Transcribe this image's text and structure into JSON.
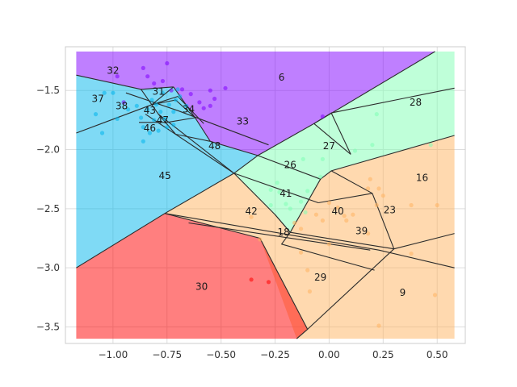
{
  "chart_data": {
    "type": "scatter",
    "title": "",
    "xlabel": "",
    "ylabel": "",
    "xlim": [
      -1.22,
      0.63
    ],
    "ylim": [
      -3.64,
      -1.13
    ],
    "grid": true,
    "x_ticks": [
      -1.0,
      -0.75,
      -0.5,
      -0.25,
      0.0,
      0.25,
      0.5
    ],
    "y_ticks": [
      -1.5,
      -2.0,
      -2.5,
      -3.0,
      -3.5
    ],
    "x_tick_labels": [
      "−1.00",
      "−0.75",
      "−0.50",
      "−0.25",
      "0.00",
      "0.25",
      "0.50"
    ],
    "y_tick_labels": [
      "−1.5",
      "−2.0",
      "−2.5",
      "−3.0",
      "−3.5"
    ],
    "region_colors": {
      "purple": "#8000ff",
      "cyan": "#00b5eb",
      "mint": "#80ffb4",
      "orange": "#ffb360",
      "red": "#ff0000"
    },
    "regions": [
      {
        "color": "purple",
        "polygon": [
          [
            -1.17,
            -1.17
          ],
          [
            0.49,
            -1.17
          ],
          [
            -0.07,
            -1.78
          ],
          [
            -0.33,
            -2.05
          ],
          [
            -0.55,
            -1.93
          ],
          [
            -0.62,
            -1.73
          ],
          [
            -0.72,
            -1.47
          ],
          [
            -0.87,
            -1.49
          ],
          [
            -1.17,
            -1.37
          ]
        ]
      },
      {
        "color": "cyan",
        "polygon": [
          [
            -1.17,
            -1.37
          ],
          [
            -0.87,
            -1.49
          ],
          [
            -0.72,
            -1.47
          ],
          [
            -0.62,
            -1.73
          ],
          [
            -0.55,
            -1.93
          ],
          [
            -0.33,
            -2.05
          ],
          [
            -0.44,
            -2.2
          ],
          [
            -0.76,
            -2.54
          ],
          [
            -1.17,
            -3.0
          ]
        ]
      },
      {
        "color": "mint",
        "polygon": [
          [
            0.49,
            -1.17
          ],
          [
            0.58,
            -1.17
          ],
          [
            0.58,
            -1.88
          ],
          [
            0.01,
            -2.18
          ],
          [
            -0.04,
            -2.25
          ],
          [
            -0.18,
            -2.7
          ],
          [
            -0.25,
            -2.55
          ],
          [
            -0.44,
            -2.2
          ],
          [
            -0.33,
            -2.05
          ],
          [
            -0.07,
            -1.78
          ]
        ]
      },
      {
        "color": "orange",
        "polygon": [
          [
            0.58,
            -1.88
          ],
          [
            0.58,
            -3.6
          ],
          [
            -0.15,
            -3.6
          ],
          [
            -0.32,
            -2.75
          ],
          [
            -0.76,
            -2.54
          ],
          [
            -0.44,
            -2.2
          ],
          [
            -0.25,
            -2.55
          ],
          [
            -0.18,
            -2.7
          ],
          [
            -0.04,
            -2.25
          ],
          [
            0.01,
            -2.18
          ]
        ]
      },
      {
        "color": "red",
        "polygon": [
          [
            -1.17,
            -3.0
          ],
          [
            -0.76,
            -2.54
          ],
          [
            -0.32,
            -2.75
          ],
          [
            -0.1,
            -3.52
          ],
          [
            -0.15,
            -3.6
          ],
          [
            -1.17,
            -3.6
          ]
        ]
      }
    ],
    "boundaries": [
      [
        [
          -1.17,
          -1.37
        ],
        [
          -0.87,
          -1.49
        ],
        [
          -0.72,
          -1.47
        ]
      ],
      [
        [
          -0.72,
          -1.47
        ],
        [
          -0.62,
          -1.73
        ],
        [
          -0.55,
          -1.93
        ],
        [
          -0.33,
          -2.05
        ],
        [
          -0.07,
          -1.78
        ],
        [
          0.49,
          -1.17
        ]
      ],
      [
        [
          -1.17,
          -3.0
        ],
        [
          -0.76,
          -2.54
        ],
        [
          -0.44,
          -2.2
        ],
        [
          -0.33,
          -2.05
        ]
      ],
      [
        [
          -1.17,
          -1.86
        ],
        [
          -0.82,
          -1.62
        ],
        [
          -0.72,
          -1.47
        ]
      ],
      [
        [
          -0.87,
          -1.49
        ],
        [
          -0.79,
          -1.7
        ],
        [
          -0.44,
          -2.2
        ]
      ],
      [
        [
          -0.94,
          -1.52
        ],
        [
          -0.7,
          -1.67
        ],
        [
          -0.28,
          -1.96
        ]
      ],
      [
        [
          -0.85,
          -1.7
        ],
        [
          -0.44,
          -2.2
        ]
      ],
      [
        [
          -0.82,
          -1.62
        ],
        [
          -0.7,
          -1.55
        ],
        [
          -0.58,
          -1.78
        ]
      ],
      [
        [
          -0.88,
          -1.77
        ],
        [
          -0.75,
          -1.77
        ],
        [
          -0.62,
          -1.73
        ]
      ],
      [
        [
          -0.82,
          -1.62
        ],
        [
          -0.71,
          -1.58
        ],
        [
          -0.62,
          -1.73
        ]
      ],
      [
        [
          -0.55,
          -1.93
        ],
        [
          -0.71,
          -1.87
        ],
        [
          -0.79,
          -1.7
        ]
      ],
      [
        [
          -0.44,
          -2.2
        ],
        [
          -0.25,
          -2.55
        ],
        [
          -0.18,
          -2.7
        ],
        [
          -0.04,
          -2.25
        ],
        [
          0.01,
          -2.18
        ],
        [
          0.58,
          -1.88
        ]
      ],
      [
        [
          -0.33,
          -2.05
        ],
        [
          -0.04,
          -2.25
        ]
      ],
      [
        [
          -0.44,
          -2.2
        ],
        [
          -0.05,
          -2.45
        ]
      ],
      [
        [
          -0.76,
          -2.54
        ],
        [
          -0.32,
          -2.75
        ],
        [
          -0.1,
          -3.52
        ],
        [
          -0.15,
          -3.6
        ]
      ],
      [
        [
          -0.76,
          -2.54
        ],
        [
          0.23,
          -2.85
        ],
        [
          0.58,
          -3.0
        ]
      ],
      [
        [
          -0.65,
          -2.62
        ],
        [
          0.19,
          -2.85
        ]
      ],
      [
        [
          -0.25,
          -2.55
        ],
        [
          -0.18,
          -2.7
        ],
        [
          -0.22,
          -2.8
        ],
        [
          0.21,
          -3.02
        ]
      ],
      [
        [
          -0.18,
          -2.7
        ],
        [
          0.3,
          -2.84
        ],
        [
          0.58,
          -2.71
        ]
      ],
      [
        [
          -0.1,
          -3.52
        ],
        [
          0.3,
          -2.84
        ]
      ],
      [
        [
          0.01,
          -2.18
        ],
        [
          0.2,
          -2.37
        ],
        [
          0.3,
          -2.84
        ]
      ],
      [
        [
          -0.05,
          -2.45
        ],
        [
          0.2,
          -2.37
        ]
      ],
      [
        [
          -0.07,
          -1.78
        ],
        [
          0.01,
          -1.69
        ],
        [
          0.1,
          -2.04
        ]
      ],
      [
        [
          0.01,
          -1.69
        ],
        [
          0.58,
          -1.48
        ]
      ],
      [
        [
          -0.07,
          -1.78
        ],
        [
          0.1,
          -2.04
        ]
      ]
    ],
    "region_labels": [
      {
        "text": "32",
        "x": -1.0,
        "y": -1.33
      },
      {
        "text": "6",
        "x": -0.22,
        "y": -1.39
      },
      {
        "text": "37",
        "x": -1.07,
        "y": -1.57
      },
      {
        "text": "31",
        "x": -0.79,
        "y": -1.51
      },
      {
        "text": "38",
        "x": -0.96,
        "y": -1.63
      },
      {
        "text": "43",
        "x": -0.83,
        "y": -1.67
      },
      {
        "text": "34",
        "x": -0.65,
        "y": -1.66
      },
      {
        "text": "28",
        "x": 0.4,
        "y": -1.6
      },
      {
        "text": "47",
        "x": -0.77,
        "y": -1.75
      },
      {
        "text": "33",
        "x": -0.4,
        "y": -1.76
      },
      {
        "text": "46",
        "x": -0.83,
        "y": -1.82
      },
      {
        "text": "48",
        "x": -0.53,
        "y": -1.97
      },
      {
        "text": "27",
        "x": 0.0,
        "y": -1.97
      },
      {
        "text": "26",
        "x": -0.18,
        "y": -2.13
      },
      {
        "text": "45",
        "x": -0.76,
        "y": -2.22
      },
      {
        "text": "16",
        "x": 0.43,
        "y": -2.24
      },
      {
        "text": "41",
        "x": -0.2,
        "y": -2.37
      },
      {
        "text": "42",
        "x": -0.36,
        "y": -2.52
      },
      {
        "text": "40",
        "x": 0.04,
        "y": -2.52
      },
      {
        "text": "23",
        "x": 0.28,
        "y": -2.51
      },
      {
        "text": "18",
        "x": -0.21,
        "y": -2.7
      },
      {
        "text": "39",
        "x": 0.15,
        "y": -2.69
      },
      {
        "text": "29",
        "x": -0.04,
        "y": -3.08
      },
      {
        "text": "30",
        "x": -0.59,
        "y": -3.16
      },
      {
        "text": "9",
        "x": 0.34,
        "y": -3.21
      }
    ],
    "points": [
      {
        "x": -0.98,
        "y": -1.38,
        "color": "purple"
      },
      {
        "x": -0.86,
        "y": -1.31,
        "color": "purple"
      },
      {
        "x": -0.81,
        "y": -1.44,
        "color": "purple"
      },
      {
        "x": -0.77,
        "y": -1.42,
        "color": "purple"
      },
      {
        "x": -0.75,
        "y": -1.27,
        "color": "purple"
      },
      {
        "x": -0.73,
        "y": -1.5,
        "color": "purple"
      },
      {
        "x": -0.68,
        "y": -1.49,
        "color": "purple"
      },
      {
        "x": -0.64,
        "y": -1.53,
        "color": "purple"
      },
      {
        "x": -0.6,
        "y": -1.6,
        "color": "purple"
      },
      {
        "x": -0.58,
        "y": -1.65,
        "color": "purple"
      },
      {
        "x": -0.55,
        "y": -1.5,
        "color": "purple"
      },
      {
        "x": -0.55,
        "y": -1.63,
        "color": "purple"
      },
      {
        "x": -0.53,
        "y": -1.57,
        "color": "purple"
      },
      {
        "x": -0.48,
        "y": -1.48,
        "color": "purple"
      },
      {
        "x": -0.95,
        "y": -1.6,
        "color": "purple"
      },
      {
        "x": -0.84,
        "y": -1.38,
        "color": "purple"
      },
      {
        "x": -0.03,
        "y": -1.72,
        "color": "purple"
      },
      {
        "x": -1.08,
        "y": -1.7,
        "color": "cyan"
      },
      {
        "x": -1.04,
        "y": -1.52,
        "color": "cyan"
      },
      {
        "x": -1.05,
        "y": -1.86,
        "color": "cyan"
      },
      {
        "x": -1.0,
        "y": -1.52,
        "color": "cyan"
      },
      {
        "x": -0.98,
        "y": -1.74,
        "color": "cyan"
      },
      {
        "x": -0.93,
        "y": -1.66,
        "color": "cyan"
      },
      {
        "x": -0.89,
        "y": -1.63,
        "color": "cyan"
      },
      {
        "x": -0.87,
        "y": -1.73,
        "color": "cyan"
      },
      {
        "x": -0.86,
        "y": -1.81,
        "color": "cyan"
      },
      {
        "x": -0.86,
        "y": -1.93,
        "color": "cyan"
      },
      {
        "x": -0.84,
        "y": -1.66,
        "color": "cyan"
      },
      {
        "x": -0.83,
        "y": -1.86,
        "color": "cyan"
      },
      {
        "x": -0.82,
        "y": -1.58,
        "color": "cyan"
      },
      {
        "x": -0.81,
        "y": -1.75,
        "color": "cyan"
      },
      {
        "x": -0.8,
        "y": -1.62,
        "color": "cyan"
      },
      {
        "x": -0.79,
        "y": -1.84,
        "color": "cyan"
      },
      {
        "x": -0.78,
        "y": -1.68,
        "color": "cyan"
      },
      {
        "x": -0.77,
        "y": -1.52,
        "color": "cyan"
      },
      {
        "x": -0.76,
        "y": -1.74,
        "color": "cyan"
      },
      {
        "x": -0.75,
        "y": -1.81,
        "color": "cyan"
      },
      {
        "x": -0.74,
        "y": -1.62,
        "color": "cyan"
      },
      {
        "x": -0.72,
        "y": -1.68,
        "color": "cyan"
      },
      {
        "x": -0.71,
        "y": -1.58,
        "color": "cyan"
      },
      {
        "x": -0.7,
        "y": -1.49,
        "color": "cyan"
      },
      {
        "x": -0.69,
        "y": -1.55,
        "color": "cyan"
      },
      {
        "x": -0.66,
        "y": -1.63,
        "color": "cyan"
      },
      {
        "x": -0.72,
        "y": -1.79,
        "color": "cyan"
      },
      {
        "x": 0.12,
        "y": -2.01,
        "color": "mint"
      },
      {
        "x": 0.2,
        "y": -1.96,
        "color": "mint"
      },
      {
        "x": 0.22,
        "y": -1.7,
        "color": "mint"
      },
      {
        "x": 0.47,
        "y": -1.96,
        "color": "mint"
      },
      {
        "x": -0.03,
        "y": -2.08,
        "color": "mint"
      },
      {
        "x": -0.12,
        "y": -2.08,
        "color": "mint"
      },
      {
        "x": -0.04,
        "y": -2.23,
        "color": "mint"
      },
      {
        "x": -0.27,
        "y": -2.34,
        "color": "mint"
      },
      {
        "x": -0.24,
        "y": -2.28,
        "color": "mint"
      },
      {
        "x": -0.23,
        "y": -2.36,
        "color": "mint"
      },
      {
        "x": -0.2,
        "y": -2.46,
        "color": "mint"
      },
      {
        "x": -0.18,
        "y": -2.5,
        "color": "mint"
      },
      {
        "x": -0.13,
        "y": -2.44,
        "color": "mint"
      },
      {
        "x": -0.1,
        "y": -2.35,
        "color": "mint"
      },
      {
        "x": -0.11,
        "y": -2.53,
        "color": "mint"
      },
      {
        "x": -0.27,
        "y": -2.47,
        "color": "mint"
      },
      {
        "x": -0.36,
        "y": -2.57,
        "color": "orange"
      },
      {
        "x": -0.16,
        "y": -2.62,
        "color": "orange"
      },
      {
        "x": -0.06,
        "y": -2.55,
        "color": "orange"
      },
      {
        "x": -0.03,
        "y": -2.6,
        "color": "orange"
      },
      {
        "x": 0.0,
        "y": -2.45,
        "color": "orange"
      },
      {
        "x": 0.04,
        "y": -2.49,
        "color": "orange"
      },
      {
        "x": 0.07,
        "y": -2.56,
        "color": "orange"
      },
      {
        "x": 0.08,
        "y": -2.6,
        "color": "orange"
      },
      {
        "x": 0.11,
        "y": -2.55,
        "color": "orange"
      },
      {
        "x": 0.18,
        "y": -2.33,
        "color": "orange"
      },
      {
        "x": 0.19,
        "y": -2.25,
        "color": "orange"
      },
      {
        "x": 0.22,
        "y": -2.47,
        "color": "orange"
      },
      {
        "x": 0.23,
        "y": -2.33,
        "color": "orange"
      },
      {
        "x": 0.25,
        "y": -2.39,
        "color": "orange"
      },
      {
        "x": 0.38,
        "y": -2.47,
        "color": "orange"
      },
      {
        "x": 0.5,
        "y": -2.47,
        "color": "orange"
      },
      {
        "x": 0.38,
        "y": -2.88,
        "color": "orange"
      },
      {
        "x": 0.18,
        "y": -2.71,
        "color": "orange"
      },
      {
        "x": 0.0,
        "y": -2.8,
        "color": "orange"
      },
      {
        "x": -0.13,
        "y": -2.67,
        "color": "orange"
      },
      {
        "x": -0.13,
        "y": -2.87,
        "color": "orange"
      },
      {
        "x": -0.1,
        "y": -3.02,
        "color": "orange"
      },
      {
        "x": -0.09,
        "y": -3.2,
        "color": "orange"
      },
      {
        "x": 0.23,
        "y": -3.49,
        "color": "orange"
      },
      {
        "x": 0.49,
        "y": -3.23,
        "color": "orange"
      },
      {
        "x": -0.32,
        "y": -2.76,
        "color": "orange"
      },
      {
        "x": -0.36,
        "y": -3.1,
        "color": "red"
      },
      {
        "x": -0.28,
        "y": -3.12,
        "color": "red"
      }
    ]
  }
}
